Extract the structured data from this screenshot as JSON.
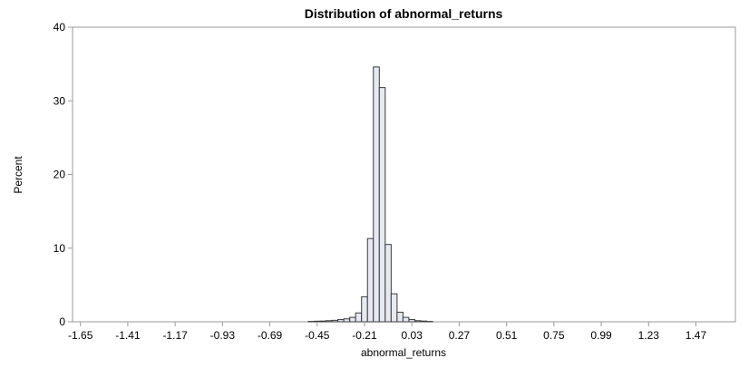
{
  "chart_data": {
    "type": "bar",
    "title": "Distribution of abnormal_returns",
    "xlabel": "abnormal_returns",
    "ylabel": "Percent",
    "ylim": [
      0,
      40
    ],
    "xlim": [
      -1.69,
      1.67
    ],
    "bin_width": 0.03,
    "yticks": [
      0,
      10,
      20,
      30,
      40
    ],
    "xticks": [
      -1.65,
      -1.41,
      -1.17,
      -0.93,
      -0.69,
      -0.45,
      -0.21,
      0.03,
      0.27,
      0.51,
      0.75,
      0.99,
      1.23,
      1.47
    ],
    "bins": [
      {
        "center": -0.48,
        "value": 0.05
      },
      {
        "center": -0.45,
        "value": 0.08
      },
      {
        "center": -0.42,
        "value": 0.1
      },
      {
        "center": -0.39,
        "value": 0.15
      },
      {
        "center": -0.36,
        "value": 0.2
      },
      {
        "center": -0.33,
        "value": 0.3
      },
      {
        "center": -0.3,
        "value": 0.4
      },
      {
        "center": -0.27,
        "value": 0.6
      },
      {
        "center": -0.24,
        "value": 1.2
      },
      {
        "center": -0.21,
        "value": 3.4
      },
      {
        "center": -0.18,
        "value": 11.3
      },
      {
        "center": -0.15,
        "value": 34.6
      },
      {
        "center": -0.12,
        "value": 31.8
      },
      {
        "center": -0.09,
        "value": 10.5
      },
      {
        "center": -0.06,
        "value": 3.8
      },
      {
        "center": -0.03,
        "value": 1.3
      },
      {
        "center": 0.0,
        "value": 0.6
      },
      {
        "center": 0.03,
        "value": 0.3
      },
      {
        "center": 0.06,
        "value": 0.15
      },
      {
        "center": 0.09,
        "value": 0.1
      },
      {
        "center": 0.12,
        "value": 0.05
      }
    ]
  }
}
